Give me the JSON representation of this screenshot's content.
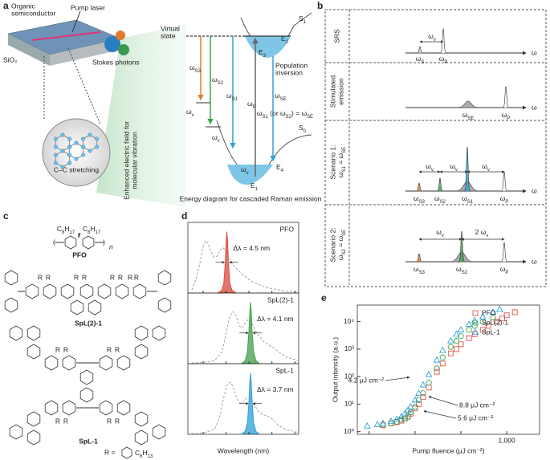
{
  "panel_a": {
    "label": "a",
    "device": {
      "organic_semiconductor": [
        "Organic",
        "semiconductor"
      ],
      "pump_laser": "Pump laser",
      "sio2": "SiO₂",
      "stokes_photons": "Stokes photons",
      "cc_stretching": "C–C stretching",
      "field_caption": [
        "Enhanced electric field for",
        "molecular vibration"
      ]
    },
    "diagram": {
      "virtual_state": [
        "Virtual",
        "state"
      ],
      "s1": {
        "text": "S",
        "sub": "1"
      },
      "e2": {
        "text": "E",
        "sub": "2"
      },
      "e3": {
        "text": "E",
        "sub": "3"
      },
      "population_inversion": [
        "Population",
        "inversion"
      ],
      "w_s3": {
        "text": "ω",
        "sub": "S3"
      },
      "w_s2": {
        "text": "ω",
        "sub": "S2"
      },
      "w_s1": {
        "text": "ω",
        "sub": "S1"
      },
      "w_p": {
        "text": "ω",
        "sub": "P"
      },
      "w_se": {
        "text": "ω",
        "sub": "SE"
      },
      "w_v": {
        "text": "ω",
        "sub": "v"
      },
      "condition": [
        {
          "text": "ω",
          "sub": "S1"
        },
        {
          "text": " (or ω",
          "sub": "S2"
        },
        {
          "text": ") = ω",
          "sub": "SE"
        }
      ],
      "s0": {
        "text": "S",
        "sub": "0"
      },
      "e4": {
        "text": "E",
        "sub": "4"
      },
      "e1": {
        "text": "E",
        "sub": "1"
      },
      "caption": "Energy diagram for cascaded Raman emission"
    }
  },
  "panel_b": {
    "label": "b",
    "omega": "ω",
    "rows": [
      {
        "title": [
          "SRS"
        ],
        "labels": [
          {
            "text": "ω",
            "sub": "S"
          },
          {
            "text": "ω",
            "sub": "P"
          },
          {
            "text": "ω",
            "sub": "v"
          }
        ]
      },
      {
        "title": [
          "Stimulated",
          "emission"
        ],
        "labels": [
          {
            "text": "ω",
            "sub": "SE"
          },
          {
            "text": "ω",
            "sub": "P"
          }
        ]
      },
      {
        "title": [
          "Scenario 1:",
          [
            {
              "text": "ω",
              "sub": "S1"
            },
            {
              "text": " = ω",
              "sub": "SE"
            }
          ]
        ],
        "labels": [
          {
            "text": "ω",
            "sub": "S3"
          },
          {
            "text": "ω",
            "sub": "S2"
          },
          {
            "text": "ω",
            "sub": "S1"
          },
          {
            "text": "ω",
            "sub": "P"
          },
          {
            "text": "ω",
            "sub": "v"
          }
        ]
      },
      {
        "title": [
          "Scenario 2:",
          [
            {
              "text": "ω",
              "sub": "S2"
            },
            {
              "text": " = ω",
              "sub": "SE"
            }
          ]
        ],
        "labels": [
          {
            "text": "ω",
            "sub": "S3"
          },
          {
            "text": "ω",
            "sub": "S2"
          },
          {
            "text": "ω",
            "sub": "P"
          },
          {
            "text": "ω",
            "sub": "v"
          },
          {
            "text": "2 ω",
            "sub": "v"
          }
        ]
      }
    ]
  },
  "panel_c": {
    "label": "c",
    "side_chain": [
      {
        "text": "C",
        "sub": "8"
      },
      {
        "text": "H",
        "sub": "17"
      }
    ],
    "repeat": "n",
    "pfo": "PFO",
    "spl21": "SpL(2)-1",
    "spl1": "SpL-1",
    "r": "R",
    "r_def": "R =",
    "hexyl": [
      {
        "text": "C",
        "sub": "6"
      },
      {
        "text": "H",
        "sub": "13"
      }
    ]
  },
  "chart_data": [
    {
      "type": "line",
      "label": "d",
      "x_label": "Wavelength (nm)",
      "xlim": [
        400,
        545
      ],
      "xticks": [
        420,
        450,
        480,
        510,
        540
      ],
      "ylim": [
        0,
        1.15
      ],
      "subplots": [
        {
          "title": "PFO",
          "annotation": "Δλ = 4.5 nm",
          "series": [
            {
              "color": "#9a9a9a",
              "dash": true,
              "x": [
                405,
                410,
                415,
                420,
                423,
                426,
                430,
                434,
                438,
                442,
                446,
                450,
                455,
                460,
                465,
                470,
                480,
                490,
                500,
                510,
                520,
                530,
                545
              ],
              "values": [
                0.05,
                0.2,
                0.45,
                0.75,
                0.85,
                0.82,
                0.68,
                0.58,
                0.6,
                0.7,
                0.74,
                0.68,
                0.55,
                0.45,
                0.38,
                0.32,
                0.22,
                0.15,
                0.1,
                0.07,
                0.05,
                0.03,
                0.02
              ]
            },
            {
              "color": "#d9473b",
              "fill": true,
              "x": [
                440,
                444,
                447,
                449,
                450,
                451,
                452,
                453,
                455,
                458,
                462
              ],
              "values": [
                0.01,
                0.04,
                0.15,
                0.5,
                0.85,
                1.0,
                0.85,
                0.5,
                0.15,
                0.04,
                0.01
              ]
            }
          ]
        },
        {
          "title": "SpL(2)-1",
          "annotation": "Δλ = 4.1 nm",
          "series": [
            {
              "color": "#9a9a9a",
              "dash": true,
              "x": [
                405,
                420,
                435,
                445,
                450,
                455,
                459,
                463,
                467,
                471,
                475,
                479,
                483,
                490,
                500,
                510,
                520,
                530,
                545
              ],
              "values": [
                0.01,
                0.02,
                0.05,
                0.2,
                0.5,
                0.78,
                0.85,
                0.78,
                0.62,
                0.58,
                0.66,
                0.72,
                0.68,
                0.5,
                0.35,
                0.27,
                0.18,
                0.1,
                0.05
              ]
            },
            {
              "color": "#3e9e4a",
              "fill": true,
              "x": [
                471,
                475,
                478,
                480,
                481,
                482,
                483,
                484,
                486,
                489,
                493
              ],
              "values": [
                0.01,
                0.05,
                0.2,
                0.55,
                0.85,
                1.0,
                0.85,
                0.55,
                0.2,
                0.05,
                0.01
              ]
            }
          ]
        },
        {
          "title": "SpL-1",
          "annotation": "Δλ = 3.7 nm",
          "series": [
            {
              "color": "#9a9a9a",
              "dash": true,
              "x": [
                405,
                420,
                435,
                442,
                447,
                451,
                455,
                459,
                463,
                467,
                471,
                476,
                481,
                486,
                492,
                498,
                504,
                510,
                518,
                528,
                545
              ],
              "values": [
                0.01,
                0.02,
                0.08,
                0.3,
                0.6,
                0.8,
                0.85,
                0.78,
                0.62,
                0.52,
                0.5,
                0.58,
                0.6,
                0.5,
                0.38,
                0.32,
                0.3,
                0.25,
                0.15,
                0.08,
                0.03
              ]
            },
            {
              "color": "#2a9fd6",
              "fill": true,
              "x": [
                471,
                475,
                478,
                480,
                481,
                482,
                483,
                484,
                486,
                489,
                493
              ],
              "values": [
                0.01,
                0.05,
                0.2,
                0.55,
                0.85,
                1.0,
                0.85,
                0.55,
                0.2,
                0.05,
                0.01
              ]
            }
          ]
        }
      ]
    },
    {
      "type": "scatter",
      "label": "e",
      "x_label": "Pump fluence (μJ cm⁻²)",
      "y_label": "Output intensity (a.u.)",
      "xscale": "log",
      "yscale": "log",
      "xlim": [
        0.55,
        5200
      ],
      "ylim": [
        0.8,
        40000
      ],
      "xticks": [
        1,
        10,
        100,
        {
          "value": 1000,
          "label": "1,000"
        }
      ],
      "yticks": [
        {
          "value": 1,
          "label": "10⁰"
        },
        {
          "value": 10,
          "label": "10¹"
        },
        {
          "value": 100,
          "label": "10²"
        },
        {
          "value": 1000,
          "label": "10³"
        },
        {
          "value": 10000,
          "label": "10⁴"
        }
      ],
      "legend": "upper right",
      "annotations": [
        "4.2 μJ cm⁻²",
        "8.8 μJ cm⁻²",
        "5.6 μJ cm⁻²"
      ],
      "series": [
        {
          "name": "PFO",
          "color": "#e0524a",
          "marker": "square",
          "x": [
            2,
            3,
            4,
            5,
            6,
            7,
            8,
            10,
            12,
            15,
            20,
            30,
            40,
            60,
            80,
            100,
            150,
            200,
            300,
            400,
            600,
            800,
            1000,
            1500
          ],
          "values": [
            1.7,
            2,
            2.2,
            2.5,
            3,
            3.5,
            4.5,
            7,
            10,
            18,
            40,
            150,
            300,
            700,
            1000,
            1500,
            2500,
            3500,
            5000,
            7000,
            10000,
            13000,
            17000,
            22000
          ]
        },
        {
          "name": "SpL(2)-1",
          "color": "#3fa34d",
          "marker": "circle",
          "x": [
            2,
            3,
            4,
            5,
            6,
            7,
            8,
            10,
            12,
            15,
            20,
            30,
            40,
            60,
            80,
            100,
            150,
            200,
            300,
            500
          ],
          "values": [
            1.8,
            2,
            2.3,
            2.7,
            3,
            3.5,
            5,
            8,
            14,
            25,
            60,
            200,
            500,
            1200,
            2000,
            3000,
            5000,
            7000,
            10000,
            14000
          ]
        },
        {
          "name": "SpL-1",
          "color": "#2ea3d6",
          "marker": "triangle",
          "x": [
            0.9,
            1.5,
            2,
            3,
            4,
            5,
            6,
            7,
            8,
            10,
            12,
            15,
            20,
            30,
            40,
            60,
            80,
            100,
            150,
            200,
            300,
            500,
            700
          ],
          "values": [
            1.6,
            1.8,
            2,
            2.4,
            2.8,
            3.5,
            4.5,
            6,
            8,
            14,
            25,
            50,
            120,
            400,
            900,
            2000,
            3500,
            5000,
            8000,
            11000,
            15000,
            22000,
            28000
          ]
        }
      ]
    }
  ]
}
